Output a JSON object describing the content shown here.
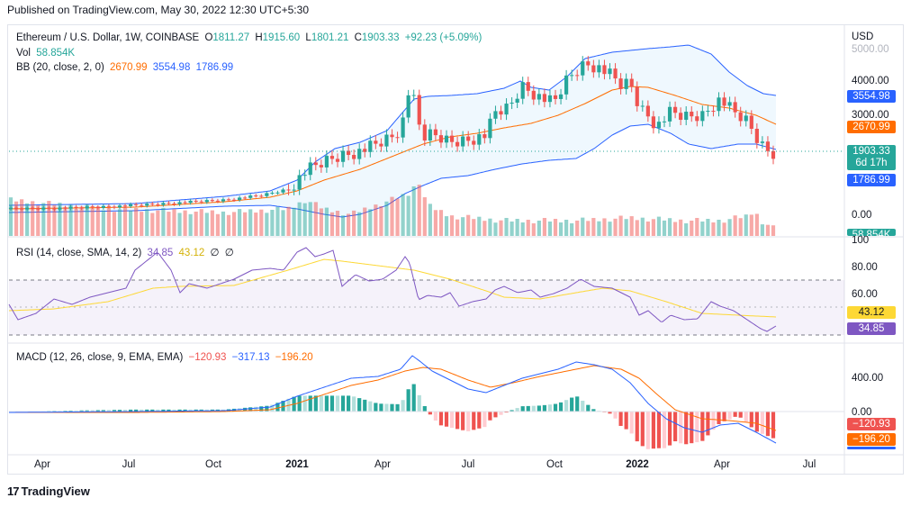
{
  "header": {
    "published": "Published on TradingView.com, May 30, 2022 12:30 UTC+5:30"
  },
  "price_pane": {
    "symbol": "Ethereum / U.S. Dollar, 1W, COINBASE",
    "ohlc": {
      "o_label": "O",
      "o": "1811.27",
      "h_label": "H",
      "h": "1915.60",
      "l_label": "L",
      "l": "1801.21",
      "c_label": "C",
      "c": "1903.33",
      "chg": "+92.23 (+5.09%)"
    },
    "vol_label": "Vol",
    "vol_value": "58.854K",
    "bb_label": "BB (20, close, 2, 0)",
    "bb_basis": "2670.99",
    "bb_upper": "3554.98",
    "bb_lower": "1786.99",
    "currency": "USD",
    "y_ticks": [
      "5000.00",
      "4000.00",
      "3000.00",
      "0.00"
    ],
    "badges": {
      "upper": "3554.98",
      "basis": "2670.99",
      "price": "1903.33",
      "countdown": "6d 17h",
      "lower": "1786.99",
      "volume": "58.854K"
    }
  },
  "rsi_pane": {
    "label": "RSI (14, close, SMA, 14, 2)",
    "rsi": "34.85",
    "ma": "43.12",
    "z1": "∅",
    "z2": "∅",
    "y_ticks": [
      "100",
      "80.00",
      "60.00"
    ],
    "badges": {
      "ma": "43.12",
      "rsi": "34.85"
    }
  },
  "macd_pane": {
    "label": "MACD (12, 26, close, 9, EMA, EMA)",
    "hist": "−120.93",
    "macd": "−317.13",
    "signal": "−196.20",
    "y_ticks": [
      "400.00",
      "0.00"
    ],
    "badges": {
      "hist": "−120.93",
      "signal": "−196.20"
    }
  },
  "x_axis": {
    "labels": [
      "Apr",
      "Jul",
      "Oct",
      "2021",
      "Apr",
      "Jul",
      "Oct",
      "2022",
      "Apr",
      "Jul"
    ]
  },
  "footer": {
    "brand": "TradingView",
    "logo": "17"
  },
  "colors": {
    "up": "#26a69a",
    "down": "#ef5350",
    "bb_line": "#2962ff",
    "bb_basis": "#ff6d00",
    "rsi": "#7e57c2",
    "rsi_ma": "#fdd835",
    "macd": "#2962ff",
    "signal": "#ff6d00"
  },
  "chart_data": {
    "type": "line",
    "title": "Ethereum / U.S. Dollar, 1W, COINBASE",
    "x": [
      "2020-04",
      "2020-07",
      "2020-10",
      "2021-01",
      "2021-04",
      "2021-05",
      "2021-07",
      "2021-10",
      "2021-11",
      "2022-01",
      "2022-04",
      "2022-05"
    ],
    "series": [
      {
        "name": "Close (approx)",
        "values": [
          215,
          235,
          375,
          1050,
          2100,
          3500,
          2400,
          3600,
          4500,
          3400,
          3300,
          1903
        ]
      },
      {
        "name": "BB upper (approx)",
        "values": [
          260,
          300,
          420,
          1200,
          2400,
          4100,
          3700,
          3900,
          4900,
          4700,
          3900,
          3555
        ]
      },
      {
        "name": "BB basis (approx)",
        "values": [
          200,
          230,
          350,
          800,
          1800,
          2700,
          2500,
          3000,
          4000,
          3500,
          3200,
          2671
        ]
      },
      {
        "name": "RSI (approx)",
        "values": [
          40,
          70,
          60,
          92,
          78,
          50,
          40,
          65,
          65,
          40,
          55,
          35
        ]
      },
      {
        "name": "MACD (approx)",
        "values": [
          0,
          5,
          20,
          150,
          450,
          550,
          180,
          500,
          600,
          50,
          -150,
          -317
        ]
      }
    ],
    "ylabel": "USD"
  }
}
